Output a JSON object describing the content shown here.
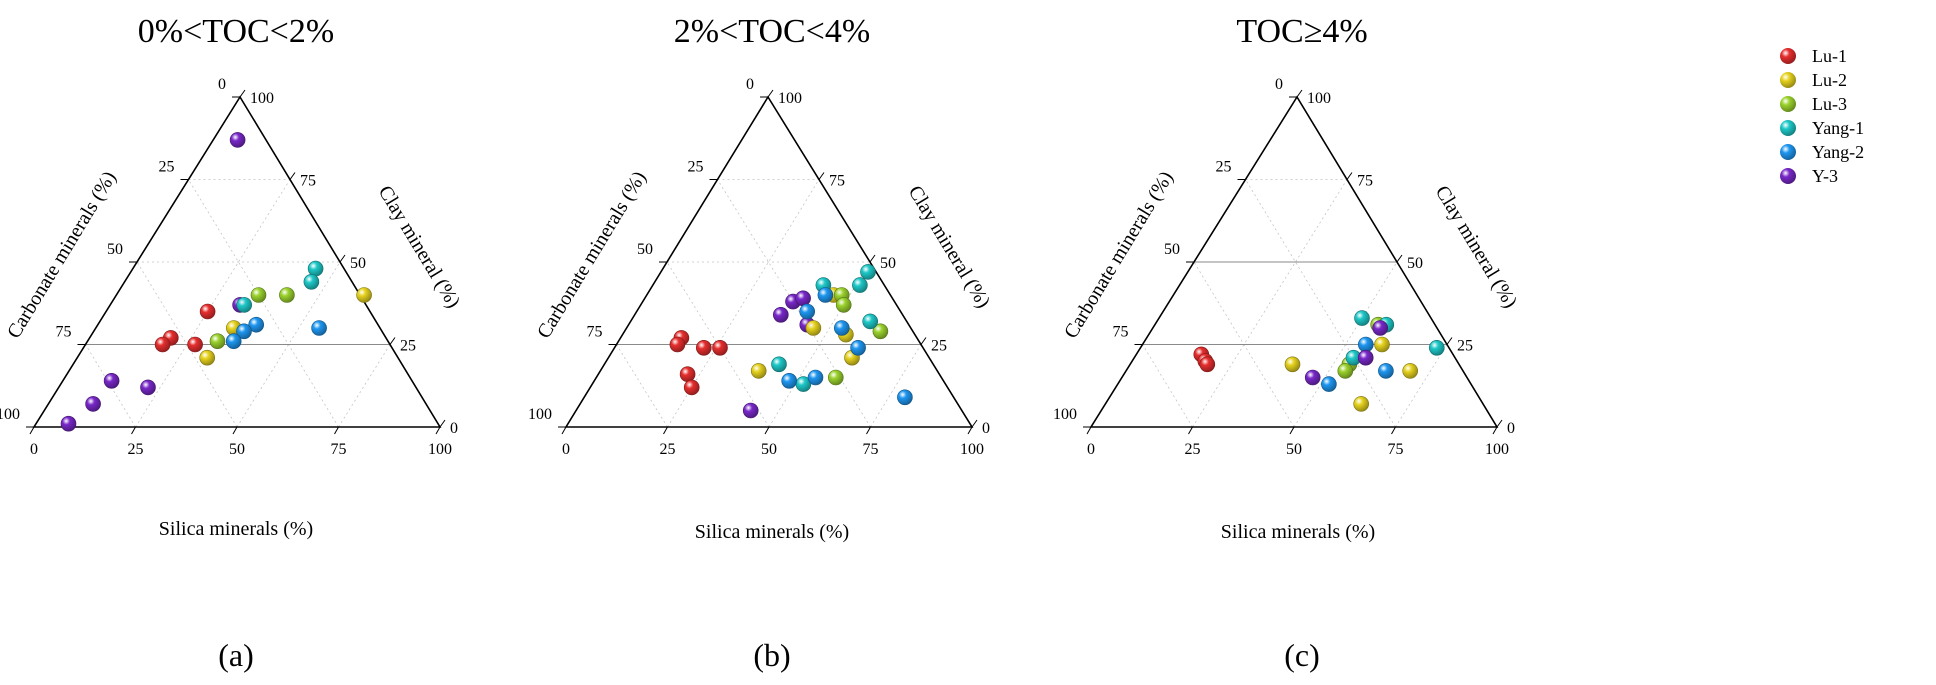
{
  "chart_data": [
    {
      "type": "scatter",
      "subtype": "ternary",
      "title": "0%<TOC<2%",
      "panel_label": "(a)",
      "bottom_axis_label": "Silica minerals (%)",
      "left_axis_label": "Carbonate minerals (%)",
      "right_axis_label": "Clay mineral (%)",
      "bottom_ticks": [
        "0",
        "25",
        "50",
        "75",
        "100"
      ],
      "left_ticks": [
        "0",
        "25",
        "50",
        "75",
        "100"
      ],
      "right_ticks": [
        "100",
        "75",
        "50",
        "25",
        "0"
      ],
      "reference_line_clay": 25,
      "points": [
        {
          "series": "Y-3",
          "silica": 6,
          "clay": 87
        },
        {
          "series": "Lu-1",
          "silica": 25,
          "clay": 35
        },
        {
          "series": "Lu-1",
          "silica": 20,
          "clay": 27
        },
        {
          "series": "Lu-1",
          "silica": 19,
          "clay": 25
        },
        {
          "series": "Lu-1",
          "silica": 27,
          "clay": 25
        },
        {
          "series": "Y-3",
          "silica": 8,
          "clay": 1
        },
        {
          "series": "Y-3",
          "silica": 12,
          "clay": 14
        },
        {
          "series": "Y-3",
          "silica": 11,
          "clay": 7
        },
        {
          "series": "Y-3",
          "silica": 22,
          "clay": 12
        },
        {
          "series": "Y-3",
          "silica": 32,
          "clay": 37
        },
        {
          "series": "Lu-2",
          "silica": 32,
          "clay": 21
        },
        {
          "series": "Lu-2",
          "silica": 34,
          "clay": 30
        },
        {
          "series": "Lu-2",
          "silica": 61,
          "clay": 40
        },
        {
          "series": "Lu-3",
          "silica": 35,
          "clay": 40
        },
        {
          "series": "Lu-3",
          "silica": 42,
          "clay": 40
        },
        {
          "series": "Lu-3",
          "silica": 32,
          "clay": 26
        },
        {
          "series": "Yang-1",
          "silica": 33,
          "clay": 37
        },
        {
          "series": "Yang-1",
          "silica": 45,
          "clay": 48
        },
        {
          "series": "Yang-1",
          "silica": 46,
          "clay": 44
        },
        {
          "series": "Yang-2",
          "silica": 39,
          "clay": 31
        },
        {
          "series": "Yang-2",
          "silica": 37,
          "clay": 29
        },
        {
          "series": "Yang-2",
          "silica": 36,
          "clay": 26
        },
        {
          "series": "Yang-2",
          "silica": 55,
          "clay": 30
        }
      ]
    },
    {
      "type": "scatter",
      "subtype": "ternary",
      "title": "2%<TOC<4%",
      "panel_label": "(b)",
      "bottom_axis_label": "Silica minerals (%)",
      "left_axis_label": "Carbonate minerals (%)",
      "right_axis_label": "Clay mineral (%)",
      "bottom_ticks": [
        "0",
        "25",
        "50",
        "75",
        "100"
      ],
      "left_ticks": [
        "0",
        "25",
        "50",
        "75",
        "100"
      ],
      "right_ticks": [
        "100",
        "75",
        "50",
        "25",
        "0"
      ],
      "reference_line_clay": 25,
      "points": [
        {
          "series": "Lu-1",
          "silica": 15,
          "clay": 27
        },
        {
          "series": "Lu-1",
          "silica": 15,
          "clay": 25
        },
        {
          "series": "Lu-1",
          "silica": 22,
          "clay": 24
        },
        {
          "series": "Lu-1",
          "silica": 26,
          "clay": 24
        },
        {
          "series": "Lu-1",
          "silica": 22,
          "clay": 16
        },
        {
          "series": "Lu-1",
          "silica": 25,
          "clay": 12
        },
        {
          "series": "Y-3",
          "silica": 43,
          "clay": 5
        },
        {
          "series": "Y-3",
          "silica": 36,
          "clay": 34
        },
        {
          "series": "Y-3",
          "silica": 44,
          "clay": 31
        },
        {
          "series": "Y-3",
          "silica": 37,
          "clay": 38
        },
        {
          "series": "Y-3",
          "silica": 39,
          "clay": 39
        },
        {
          "series": "Lu-2",
          "silica": 39,
          "clay": 17
        },
        {
          "series": "Lu-2",
          "silica": 55,
          "clay": 28
        },
        {
          "series": "Lu-2",
          "silica": 60,
          "clay": 21
        },
        {
          "series": "Lu-2",
          "silica": 46,
          "clay": 30
        },
        {
          "series": "Lu-2",
          "silica": 46,
          "clay": 40
        },
        {
          "series": "Lu-3",
          "silica": 48,
          "clay": 40
        },
        {
          "series": "Lu-3",
          "silica": 50,
          "clay": 37
        },
        {
          "series": "Lu-3",
          "silica": 63,
          "clay": 29
        },
        {
          "series": "Lu-3",
          "silica": 59,
          "clay": 15
        },
        {
          "series": "Yang-1",
          "silica": 42,
          "clay": 43
        },
        {
          "series": "Yang-1",
          "silica": 51,
          "clay": 43
        },
        {
          "series": "Yang-1",
          "silica": 51,
          "clay": 47
        },
        {
          "series": "Yang-1",
          "silica": 43,
          "clay": 19
        },
        {
          "series": "Yang-1",
          "silica": 59,
          "clay": 32
        },
        {
          "series": "Yang-1",
          "silica": 52,
          "clay": 13
        },
        {
          "series": "Yang-2",
          "silica": 44,
          "clay": 40
        },
        {
          "series": "Yang-2",
          "silica": 42,
          "clay": 35
        },
        {
          "series": "Yang-2",
          "silica": 53,
          "clay": 30
        },
        {
          "series": "Yang-2",
          "silica": 48,
          "clay": 14
        },
        {
          "series": "Yang-2",
          "silica": 54,
          "clay": 15
        },
        {
          "series": "Yang-2",
          "silica": 60,
          "clay": 24
        },
        {
          "series": "Yang-2",
          "silica": 79,
          "clay": 9
        }
      ]
    },
    {
      "type": "scatter",
      "subtype": "ternary",
      "title": "TOC≥4%",
      "panel_label": "(c)",
      "bottom_axis_label": "Silica minerals (%)",
      "left_axis_label": "Carbonate minerals (%)",
      "right_axis_label": "Clay mineral (%)",
      "bottom_ticks": [
        "0",
        "25",
        "50",
        "75",
        "100"
      ],
      "left_ticks": [
        "0",
        "25",
        "50",
        "75",
        "100"
      ],
      "right_ticks": [
        "100",
        "75",
        "50",
        "25",
        "0"
      ],
      "reference_line_clay": 50,
      "reference_line_clay_2": 25,
      "points": [
        {
          "series": "Lu-1",
          "silica": 16,
          "clay": 22
        },
        {
          "series": "Lu-1",
          "silica": 18,
          "clay": 20
        },
        {
          "series": "Lu-1",
          "silica": 19,
          "clay": 19
        },
        {
          "series": "Lu-2",
          "silica": 40,
          "clay": 19
        },
        {
          "series": "Lu-2",
          "silica": 59,
          "clay": 25
        },
        {
          "series": "Lu-2",
          "silica": 63,
          "clay": 7
        },
        {
          "series": "Lu-2",
          "silica": 70,
          "clay": 17
        },
        {
          "series": "Lu-3",
          "silica": 54,
          "clay": 19
        },
        {
          "series": "Lu-3",
          "silica": 54,
          "clay": 17
        },
        {
          "series": "Lu-3",
          "silica": 55,
          "clay": 31
        },
        {
          "series": "Yang-1",
          "silica": 50,
          "clay": 33
        },
        {
          "series": "Yang-1",
          "silica": 57,
          "clay": 31
        },
        {
          "series": "Yang-1",
          "silica": 54,
          "clay": 21
        },
        {
          "series": "Yang-1",
          "silica": 73,
          "clay": 24
        },
        {
          "series": "Yang-2",
          "silica": 55,
          "clay": 25
        },
        {
          "series": "Yang-2",
          "silica": 64,
          "clay": 17
        },
        {
          "series": "Yang-2",
          "silica": 52,
          "clay": 13
        },
        {
          "series": "Y-3",
          "silica": 56,
          "clay": 30
        },
        {
          "series": "Y-3",
          "silica": 57,
          "clay": 21
        },
        {
          "series": "Y-3",
          "silica": 47,
          "clay": 15
        }
      ]
    }
  ],
  "legend": {
    "items": [
      {
        "label": "Lu-1",
        "color": "#e62e2e"
      },
      {
        "label": "Lu-2",
        "color": "#e6d21e"
      },
      {
        "label": "Lu-3",
        "color": "#9bd22d"
      },
      {
        "label": "Yang-1",
        "color": "#1ec8c8"
      },
      {
        "label": "Yang-2",
        "color": "#1e96f0"
      },
      {
        "label": "Y-3",
        "color": "#7828c8"
      }
    ]
  }
}
